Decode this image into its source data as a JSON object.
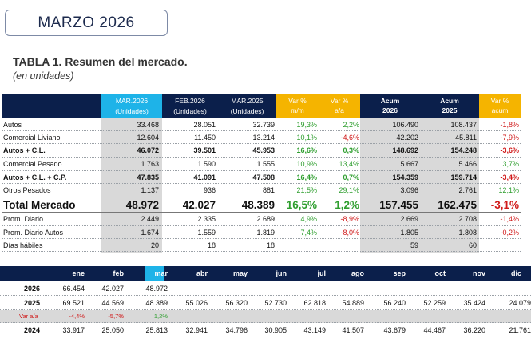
{
  "month_box": "MARZO 2026",
  "table_title": "TABLA 1. Resumen del mercado.",
  "table_subtitle": "(en unidades)",
  "t1": {
    "headers": {
      "mar": "MAR.2026",
      "mar_sub": "(Unidades)",
      "feb": "FEB.2026",
      "feb_sub": "(Unidades)",
      "mar25": "MAR.2025",
      "mar25_sub": "(Unidades)",
      "var_mm_1": "Var %",
      "var_mm_2": "m/m",
      "var_aa_1": "Var %",
      "var_aa_2": "a/a",
      "acum26_1": "Acum",
      "acum26_2": "2026",
      "acum25_1": "Acum",
      "acum25_2": "2025",
      "var_acum_1": "Var %",
      "var_acum_2": "acum"
    },
    "rows": [
      {
        "label": "Autos",
        "mar": "33.468",
        "feb": "28.051",
        "mar25": "32.739",
        "vmm": "19,3%",
        "vmm_c": "green",
        "vaa": "2,2%",
        "vaa_c": "green",
        "a26": "106.490",
        "a25": "108.437",
        "vac": "-1,8%",
        "vac_c": "red",
        "style": "normal"
      },
      {
        "label": "Comercial Liviano",
        "mar": "12.604",
        "feb": "11.450",
        "mar25": "13.214",
        "vmm": "10,1%",
        "vmm_c": "green",
        "vaa": "-4,6%",
        "vaa_c": "red",
        "a26": "42.202",
        "a25": "45.811",
        "vac": "-7,9%",
        "vac_c": "red",
        "style": "normal"
      },
      {
        "label": "Autos + C.L.",
        "mar": "46.072",
        "feb": "39.501",
        "mar25": "45.953",
        "vmm": "16,6%",
        "vmm_c": "green",
        "vaa": "0,3%",
        "vaa_c": "green",
        "a26": "148.692",
        "a25": "154.248",
        "vac": "-3,6%",
        "vac_c": "red",
        "style": "bold"
      },
      {
        "label": "Comercial Pesado",
        "mar": "1.763",
        "feb": "1.590",
        "mar25": "1.555",
        "vmm": "10,9%",
        "vmm_c": "green",
        "vaa": "13,4%",
        "vaa_c": "green",
        "a26": "5.667",
        "a25": "5.466",
        "vac": "3,7%",
        "vac_c": "green",
        "style": "normal"
      },
      {
        "label": "Autos + C.L. + C.P.",
        "mar": "47.835",
        "feb": "41.091",
        "mar25": "47.508",
        "vmm": "16,4%",
        "vmm_c": "green",
        "vaa": "0,7%",
        "vaa_c": "green",
        "a26": "154.359",
        "a25": "159.714",
        "vac": "-3,4%",
        "vac_c": "red",
        "style": "bold"
      },
      {
        "label": "Otros Pesados",
        "mar": "1.137",
        "feb": "936",
        "mar25": "881",
        "vmm": "21,5%",
        "vmm_c": "green",
        "vaa": "29,1%",
        "vaa_c": "green",
        "a26": "3.096",
        "a25": "2.761",
        "vac": "12,1%",
        "vac_c": "green",
        "style": "normal"
      },
      {
        "label": "Total Mercado",
        "mar": "48.972",
        "feb": "42.027",
        "mar25": "48.389",
        "vmm": "16,5%",
        "vmm_c": "green",
        "vaa": "1,2%",
        "vaa_c": "green",
        "a26": "157.455",
        "a25": "162.475",
        "vac": "-3,1%",
        "vac_c": "red",
        "style": "big"
      },
      {
        "label": "Prom. Diario",
        "mar": "2.449",
        "feb": "2.335",
        "mar25": "2.689",
        "vmm": "4,9%",
        "vmm_c": "green",
        "vaa": "-8,9%",
        "vaa_c": "red",
        "a26": "2.669",
        "a25": "2.708",
        "vac": "-1,4%",
        "vac_c": "red",
        "style": "normal"
      },
      {
        "label": "Prom. Diario Autos",
        "mar": "1.674",
        "feb": "1.559",
        "mar25": "1.819",
        "vmm": "7,4%",
        "vmm_c": "green",
        "vaa": "-8,0%",
        "vaa_c": "red",
        "a26": "1.805",
        "a25": "1.808",
        "vac": "-0,2%",
        "vac_c": "red",
        "style": "normal"
      },
      {
        "label": "Días hábiles",
        "mar": "20",
        "feb": "18",
        "mar25": "18",
        "vmm": "",
        "vmm_c": "green",
        "vaa": "",
        "vaa_c": "green",
        "a26": "59",
        "a25": "60",
        "vac": "",
        "vac_c": "green",
        "style": "normal"
      }
    ]
  },
  "t2": {
    "months": [
      "ene",
      "feb",
      "mar",
      "abr",
      "may",
      "jun",
      "jul",
      "ago",
      "sep",
      "oct",
      "nov",
      "dic"
    ],
    "rows": [
      {
        "label": "2026",
        "values": [
          "66.454",
          "42.027",
          "48.972",
          "",
          "",
          "",
          "",
          "",
          "",
          "",
          "",
          ""
        ],
        "style": "bold"
      },
      {
        "label": "2025",
        "values": [
          "69.521",
          "44.569",
          "48.389",
          "55.026",
          "56.320",
          "52.730",
          "62.818",
          "54.889",
          "56.240",
          "52.259",
          "35.424",
          "24.079"
        ],
        "style": "bold"
      },
      {
        "label": "Var a/a",
        "values": [
          "-4,4%",
          "-5,7%",
          "1,2%",
          "",
          "",
          "",
          "",
          "",
          "",
          "",
          "",
          ""
        ],
        "colors": [
          "red",
          "red",
          "green",
          "",
          "",
          "",
          "",
          "",
          "",
          "",
          "",
          ""
        ],
        "style": "var"
      },
      {
        "label": "2024",
        "values": [
          "33.917",
          "25.050",
          "25.813",
          "32.941",
          "34.796",
          "30.905",
          "43.149",
          "41.507",
          "43.679",
          "44.467",
          "36.220",
          "21.761"
        ],
        "style": "bold"
      }
    ]
  },
  "colors": {
    "navy": "#0b1f4b",
    "cyan": "#1eb3e8",
    "orange": "#f5b400",
    "gray": "#d9d9d9"
  }
}
